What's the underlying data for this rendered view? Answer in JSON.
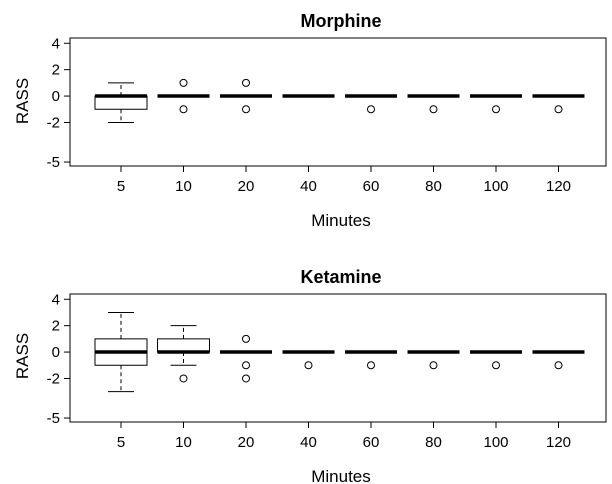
{
  "chart_data": [
    {
      "type": "box",
      "title": "Morphine",
      "xlabel": "Minutes",
      "ylabel": "RASS",
      "categories": [
        "5",
        "10",
        "20",
        "40",
        "60",
        "80",
        "100",
        "120"
      ],
      "yticks": [
        "4",
        "2",
        "0",
        "-2",
        "-5"
      ],
      "ytick_values": [
        4,
        2,
        0,
        -2,
        -5
      ],
      "ylim": [
        -5.3,
        4.4
      ],
      "boxes": [
        {
          "category": "5",
          "q1": -1,
          "median": 0,
          "q3": 0,
          "whisker_low": -2,
          "whisker_high": 1,
          "outliers": []
        },
        {
          "category": "10",
          "q1": 0,
          "median": 0,
          "q3": 0,
          "whisker_low": 0,
          "whisker_high": 0,
          "outliers": [
            1,
            -1
          ]
        },
        {
          "category": "20",
          "q1": 0,
          "median": 0,
          "q3": 0,
          "whisker_low": 0,
          "whisker_high": 0,
          "outliers": [
            1,
            -1
          ]
        },
        {
          "category": "40",
          "q1": 0,
          "median": 0,
          "q3": 0,
          "whisker_low": 0,
          "whisker_high": 0,
          "outliers": []
        },
        {
          "category": "60",
          "q1": 0,
          "median": 0,
          "q3": 0,
          "whisker_low": 0,
          "whisker_high": 0,
          "outliers": [
            -1
          ]
        },
        {
          "category": "80",
          "q1": 0,
          "median": 0,
          "q3": 0,
          "whisker_low": 0,
          "whisker_high": 0,
          "outliers": [
            -1
          ]
        },
        {
          "category": "100",
          "q1": 0,
          "median": 0,
          "q3": 0,
          "whisker_low": 0,
          "whisker_high": 0,
          "outliers": [
            -1
          ]
        },
        {
          "category": "120",
          "q1": 0,
          "median": 0,
          "q3": 0,
          "whisker_low": 0,
          "whisker_high": 0,
          "outliers": [
            -1
          ]
        }
      ]
    },
    {
      "type": "box",
      "title": "Ketamine",
      "xlabel": "Minutes",
      "ylabel": "RASS",
      "categories": [
        "5",
        "10",
        "20",
        "40",
        "60",
        "80",
        "100",
        "120"
      ],
      "yticks": [
        "4",
        "2",
        "0",
        "-2",
        "-5"
      ],
      "ytick_values": [
        4,
        2,
        0,
        -2,
        -5
      ],
      "ylim": [
        -5.3,
        4.4
      ],
      "boxes": [
        {
          "category": "5",
          "q1": -1,
          "median": 0,
          "q3": 1,
          "whisker_low": -3,
          "whisker_high": 3,
          "outliers": []
        },
        {
          "category": "10",
          "q1": 0,
          "median": 0,
          "q3": 1,
          "whisker_low": -1,
          "whisker_high": 2,
          "outliers": [
            -2
          ]
        },
        {
          "category": "20",
          "q1": 0,
          "median": 0,
          "q3": 0,
          "whisker_low": 0,
          "whisker_high": 0,
          "outliers": [
            1,
            -1,
            -2
          ]
        },
        {
          "category": "40",
          "q1": 0,
          "median": 0,
          "q3": 0,
          "whisker_low": 0,
          "whisker_high": 0,
          "outliers": [
            -1
          ]
        },
        {
          "category": "60",
          "q1": 0,
          "median": 0,
          "q3": 0,
          "whisker_low": 0,
          "whisker_high": 0,
          "outliers": [
            -1
          ]
        },
        {
          "category": "80",
          "q1": 0,
          "median": 0,
          "q3": 0,
          "whisker_low": 0,
          "whisker_high": 0,
          "outliers": [
            -1
          ]
        },
        {
          "category": "100",
          "q1": 0,
          "median": 0,
          "q3": 0,
          "whisker_low": 0,
          "whisker_high": 0,
          "outliers": [
            -1
          ]
        },
        {
          "category": "120",
          "q1": 0,
          "median": 0,
          "q3": 0,
          "whisker_low": 0,
          "whisker_high": 0,
          "outliers": [
            -1
          ]
        }
      ]
    }
  ]
}
